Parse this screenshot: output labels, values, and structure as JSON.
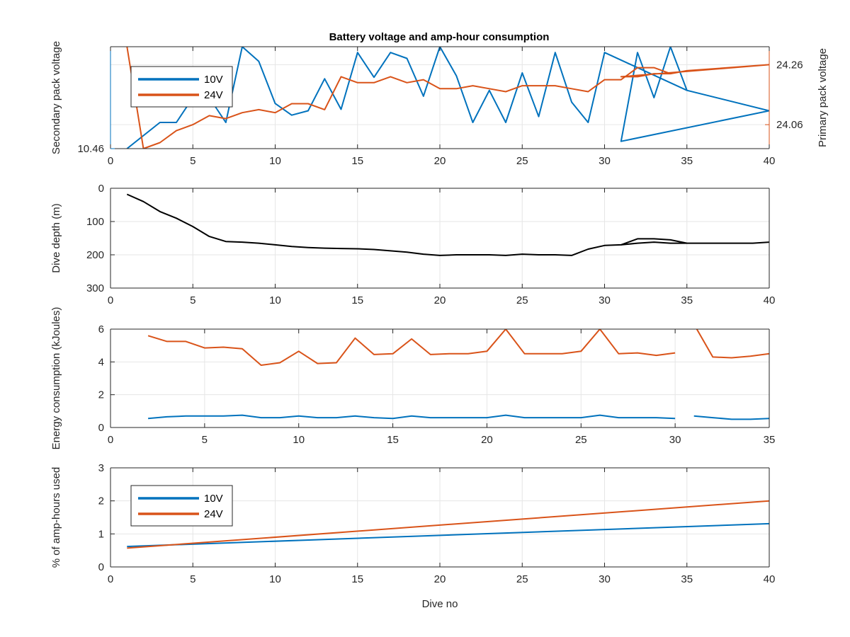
{
  "figure": {
    "title": "Battery voltage and amp-hour consumption",
    "colors": {
      "blue": "#0072BD",
      "orange": "#D95319",
      "black": "#000000",
      "grid": "#e6e6e6"
    }
  },
  "chart_data": [
    {
      "type": "line",
      "title": "Battery voltage and amp-hour consumption",
      "xlabel": "",
      "ylabel": "Secondary pack voltage",
      "y2label": "Primary pack voltage",
      "xlim": [
        0,
        40
      ],
      "xticks": [
        0,
        5,
        10,
        15,
        20,
        25,
        30,
        35,
        40
      ],
      "ylim": [
        10.46,
        10.6
      ],
      "yticks": [
        10.46
      ],
      "y2lim": [
        23.98,
        24.32
      ],
      "y2ticks": [
        24.06,
        24.26
      ],
      "grid": true,
      "legend": {
        "position": "top-left",
        "entries": [
          "10V",
          "24V"
        ]
      },
      "series": [
        {
          "name": "10V",
          "axis": "left",
          "color": "#0072BD",
          "x": [
            1,
            3,
            4,
            5,
            6,
            7,
            8,
            9,
            10,
            11,
            12,
            13,
            14,
            15,
            16,
            17,
            18,
            19,
            20,
            21,
            22,
            23,
            24,
            25,
            26,
            27,
            28,
            29,
            30,
            35,
            40,
            31,
            32,
            33,
            34,
            35
          ],
          "y": [
            10.46,
            10.496,
            10.496,
            10.53,
            10.53,
            10.496,
            10.6,
            10.58,
            10.522,
            10.506,
            10.512,
            10.556,
            10.514,
            10.592,
            10.558,
            10.592,
            10.584,
            10.532,
            10.6,
            10.56,
            10.496,
            10.54,
            10.496,
            10.564,
            10.504,
            10.592,
            10.524,
            10.496,
            10.592,
            10.54,
            10.512,
            10.47,
            10.592,
            10.53,
            10.6,
            10.54
          ]
        },
        {
          "name": "24V",
          "axis": "right",
          "color": "#D95319",
          "x": [
            1,
            2,
            3,
            4,
            5,
            6,
            7,
            8,
            9,
            10,
            11,
            12,
            13,
            14,
            15,
            16,
            17,
            18,
            19,
            20,
            21,
            22,
            23,
            24,
            25,
            26,
            27,
            28,
            29,
            30,
            31,
            32,
            33,
            34,
            35,
            40,
            31,
            32,
            33,
            34,
            35
          ],
          "y": [
            24.32,
            23.98,
            24.0,
            24.04,
            24.06,
            24.09,
            24.08,
            24.1,
            24.11,
            24.1,
            24.13,
            24.13,
            24.11,
            24.22,
            24.2,
            24.2,
            24.22,
            24.2,
            24.21,
            24.18,
            24.18,
            24.19,
            24.18,
            24.17,
            24.19,
            24.19,
            24.19,
            24.18,
            24.17,
            24.21,
            24.21,
            24.25,
            24.25,
            24.23,
            24.24,
            24.26,
            24.22,
            24.22,
            24.23,
            24.23,
            24.24
          ]
        }
      ]
    },
    {
      "type": "line",
      "xlabel": "",
      "ylabel": "Dive depth (m)",
      "xlim": [
        0,
        40
      ],
      "xticks": [
        0,
        5,
        10,
        15,
        20,
        25,
        30,
        35,
        40
      ],
      "ylim": [
        300,
        0
      ],
      "yticks": [
        0,
        100,
        200,
        300
      ],
      "reversed_y": true,
      "grid": true,
      "series": [
        {
          "color": "#000000",
          "x": [
            1,
            2,
            3,
            4,
            5,
            6,
            7,
            8,
            9,
            10,
            11,
            12,
            13,
            14,
            15,
            16,
            17,
            18,
            19,
            20,
            21,
            22,
            23,
            24,
            25,
            26,
            27,
            28,
            29,
            30,
            31,
            32,
            33,
            34,
            35,
            36,
            37,
            38,
            39,
            40
          ],
          "y": [
            18,
            40,
            70,
            90,
            115,
            145,
            160,
            162,
            165,
            170,
            175,
            178,
            180,
            181,
            182,
            184,
            188,
            192,
            198,
            202,
            200,
            200,
            200,
            202,
            198,
            200,
            200,
            202,
            183,
            172,
            170,
            165,
            162,
            165,
            165,
            165,
            165,
            165,
            165,
            162
          ]
        },
        {
          "color": "#000000",
          "x": [
            31,
            32,
            33,
            34,
            35
          ],
          "y": [
            170,
            152,
            152,
            155,
            165
          ]
        }
      ]
    },
    {
      "type": "line",
      "xlabel": "",
      "ylabel": "Energy consumption (kJoules)",
      "xlim": [
        0,
        35
      ],
      "xticks": [
        0,
        5,
        10,
        15,
        20,
        25,
        30,
        35
      ],
      "ylim": [
        0,
        6
      ],
      "yticks": [
        0,
        2,
        4,
        6
      ],
      "grid": true,
      "series": [
        {
          "color": "#D95319",
          "x": [
            2,
            3,
            4,
            5,
            6,
            7,
            8,
            9,
            10,
            11,
            12,
            13,
            14,
            15,
            16,
            17,
            18,
            19,
            20,
            21,
            22,
            23,
            24,
            25,
            26,
            27,
            28,
            29,
            30,
            null,
            31,
            32,
            33,
            34,
            35
          ],
          "y": [
            5.6,
            5.25,
            5.25,
            4.85,
            4.9,
            4.8,
            3.8,
            3.95,
            4.65,
            3.9,
            3.95,
            5.45,
            4.45,
            4.5,
            5.4,
            4.45,
            4.5,
            4.5,
            4.65,
            6.0,
            4.5,
            4.5,
            4.5,
            4.65,
            6.0,
            4.5,
            4.55,
            4.4,
            4.55,
            null,
            6.3,
            4.3,
            4.25,
            4.35,
            4.5
          ]
        },
        {
          "color": "#0072BD",
          "x": [
            2,
            3,
            4,
            5,
            6,
            7,
            8,
            9,
            10,
            11,
            12,
            13,
            14,
            15,
            16,
            17,
            18,
            19,
            20,
            21,
            22,
            23,
            24,
            25,
            26,
            27,
            28,
            29,
            30,
            null,
            31,
            32,
            33,
            34,
            35
          ],
          "y": [
            0.55,
            0.65,
            0.7,
            0.7,
            0.7,
            0.75,
            0.6,
            0.6,
            0.7,
            0.6,
            0.6,
            0.7,
            0.6,
            0.55,
            0.7,
            0.6,
            0.6,
            0.6,
            0.6,
            0.75,
            0.6,
            0.6,
            0.6,
            0.6,
            0.75,
            0.6,
            0.6,
            0.6,
            0.55,
            null,
            0.7,
            0.6,
            0.5,
            0.5,
            0.55
          ]
        }
      ]
    },
    {
      "type": "line",
      "xlabel": "Dive no",
      "ylabel": "% of amp-hours used",
      "xlim": [
        0,
        40
      ],
      "xticks": [
        0,
        5,
        10,
        15,
        20,
        25,
        30,
        35,
        40
      ],
      "ylim": [
        0,
        3
      ],
      "yticks": [
        0,
        1,
        2,
        3
      ],
      "grid": true,
      "legend": {
        "position": "top-left",
        "entries": [
          "10V",
          "24V"
        ]
      },
      "series": [
        {
          "name": "10V",
          "color": "#0072BD",
          "x": [
            1,
            40
          ],
          "y": [
            0.62,
            1.31
          ]
        },
        {
          "name": "24V",
          "color": "#D95319",
          "x": [
            1,
            40
          ],
          "y": [
            0.57,
            2.0
          ]
        }
      ]
    }
  ]
}
